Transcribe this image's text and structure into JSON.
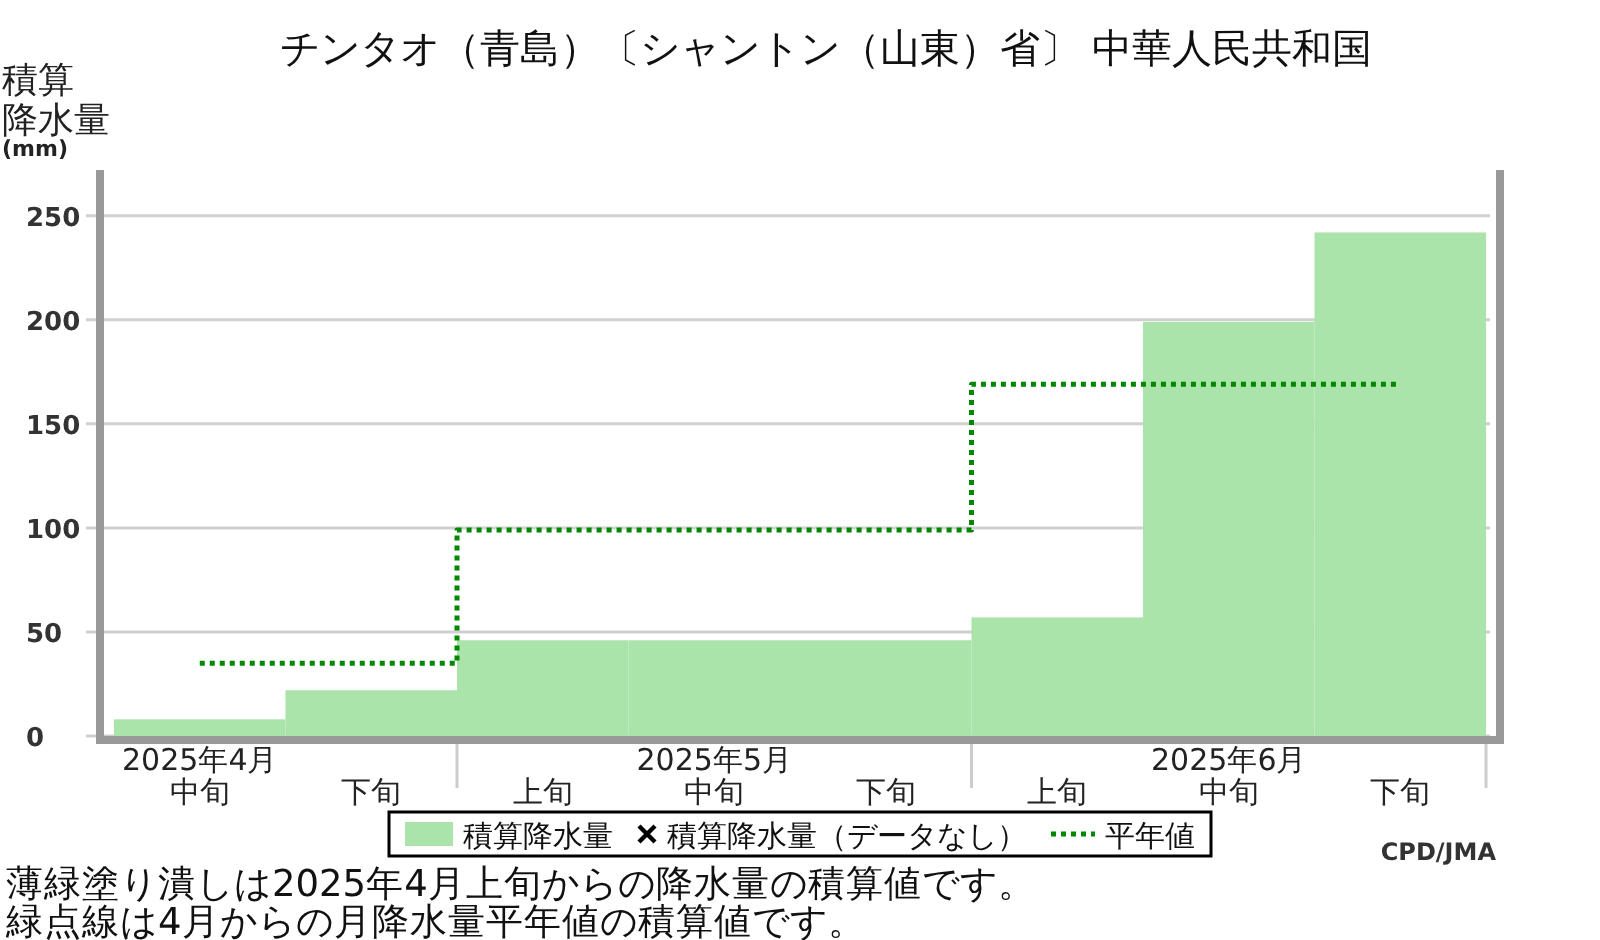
{
  "chart_data": {
    "type": "bar",
    "title": "チンタオ（青島）〔シャントン（山東）省〕 中華人民共和国",
    "ylabel": "積算降水量(mm)",
    "categories": [
      "2025年4月中旬",
      "下旬",
      "上旬",
      "2025年5月中旬",
      "下旬",
      "上旬",
      "2025年6月中旬",
      "下旬"
    ],
    "series": [
      {
        "name": "積算降水量",
        "color": "#aae4aa",
        "values": [
          8,
          22,
          46,
          46,
          46,
          57,
          199,
          242
        ]
      },
      {
        "name": "積算降水量（データなし）",
        "type": "scatter",
        "marker": "cross",
        "color": "#000000",
        "values": [
          null,
          null,
          null,
          null,
          null,
          null,
          null,
          null
        ]
      },
      {
        "name": "平年値",
        "type": "step",
        "line_style": "dotted",
        "color": "#008800",
        "values": [
          35,
          35,
          99,
          99,
          99,
          169,
          169,
          169
        ]
      }
    ],
    "ylim": [
      0,
      272
    ],
    "yticks": [
      0,
      50,
      100,
      150,
      200,
      250
    ],
    "grid": "y",
    "legend": "bottom",
    "annotations": [
      "薄緑塗り潰しは2025年4月上旬からの降水量の積算値です。",
      "緑点線は4月からの月降水量平年値の積算値です。",
      "CPD/JMA"
    ]
  }
}
